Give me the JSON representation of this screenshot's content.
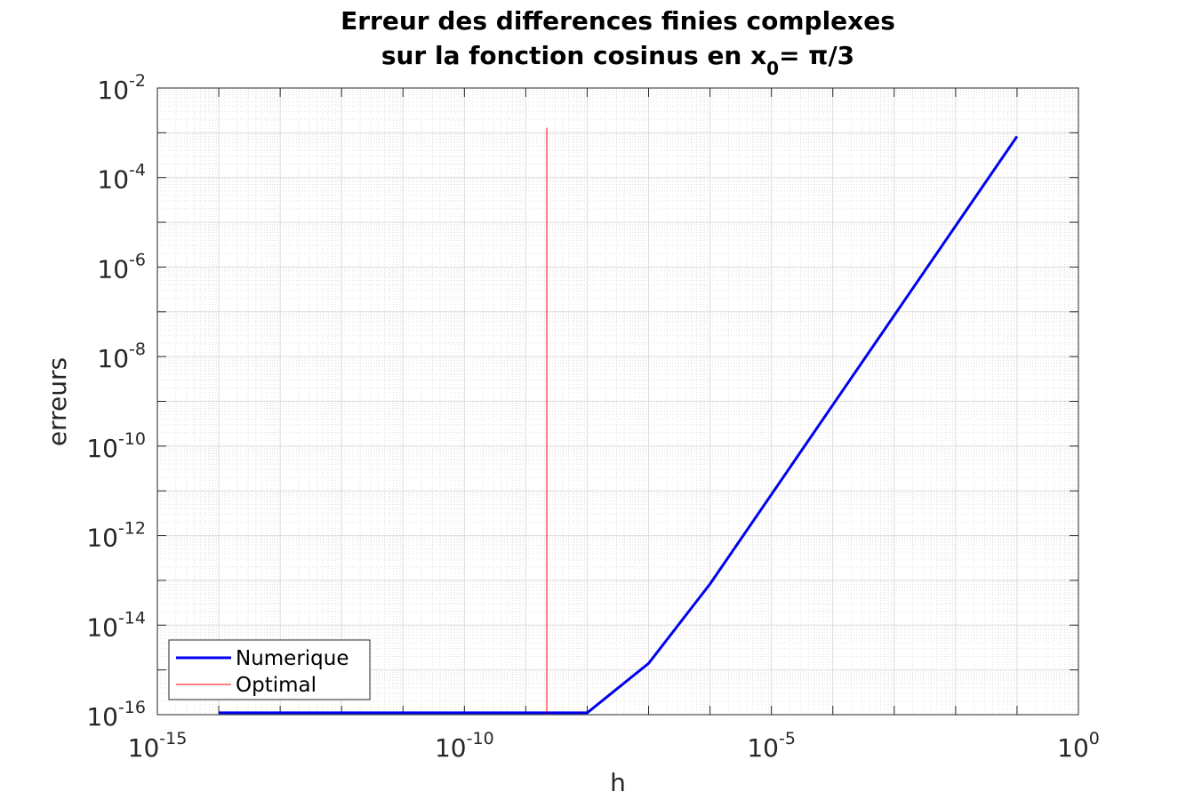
{
  "chart_data": {
    "type": "line",
    "title_line1": "Erreur des differences finies complexes",
    "title_line2_prefix": "sur la fonction cosinus en x",
    "title_line2_sub": "0",
    "title_line2_suffix": "= π/3",
    "xlabel": "h",
    "ylabel": "erreurs",
    "x_scale": "log",
    "y_scale": "log",
    "xlim": [
      1e-15,
      1
    ],
    "ylim": [
      1e-16,
      0.01
    ],
    "x_ticks": [
      {
        "value": 1e-15,
        "base": "10",
        "exp": "-15"
      },
      {
        "value": 1e-10,
        "base": "10",
        "exp": "-10"
      },
      {
        "value": 1e-05,
        "base": "10",
        "exp": "-5"
      },
      {
        "value": 1,
        "base": "10",
        "exp": "0"
      }
    ],
    "y_ticks": [
      {
        "value": 1e-16,
        "base": "10",
        "exp": "-16"
      },
      {
        "value": 1e-14,
        "base": "10",
        "exp": "-14"
      },
      {
        "value": 1e-12,
        "base": "10",
        "exp": "-12"
      },
      {
        "value": 1e-10,
        "base": "10",
        "exp": "-10"
      },
      {
        "value": 1e-08,
        "base": "10",
        "exp": "-8"
      },
      {
        "value": 1e-06,
        "base": "10",
        "exp": "-6"
      },
      {
        "value": 0.0001,
        "base": "10",
        "exp": "-4"
      },
      {
        "value": 0.01,
        "base": "10",
        "exp": "-2"
      }
    ],
    "grid": true,
    "legend_position": "bottom-left",
    "series": [
      {
        "name": "Numerique",
        "color": "#0000ee",
        "x": [
          1e-14,
          1e-13,
          1e-12,
          1e-11,
          1e-10,
          1e-09,
          1e-08,
          1e-07,
          1e-06,
          1e-05,
          0.0001,
          0.001,
          0.01,
          0.1
        ],
        "y": [
          1.1e-16,
          1.1e-16,
          1.1e-16,
          1.1e-16,
          1.1e-16,
          1.1e-16,
          1.1e-16,
          1.4e-15,
          8.3e-14,
          8.3e-12,
          8.3e-10,
          8.3e-08,
          8.3e-06,
          0.00083
        ]
      },
      {
        "name": "Optimal",
        "color": "#ff0000",
        "x": [
          2.2e-09,
          2.2e-09
        ],
        "y": [
          1.1e-16,
          0.0013
        ]
      }
    ]
  }
}
